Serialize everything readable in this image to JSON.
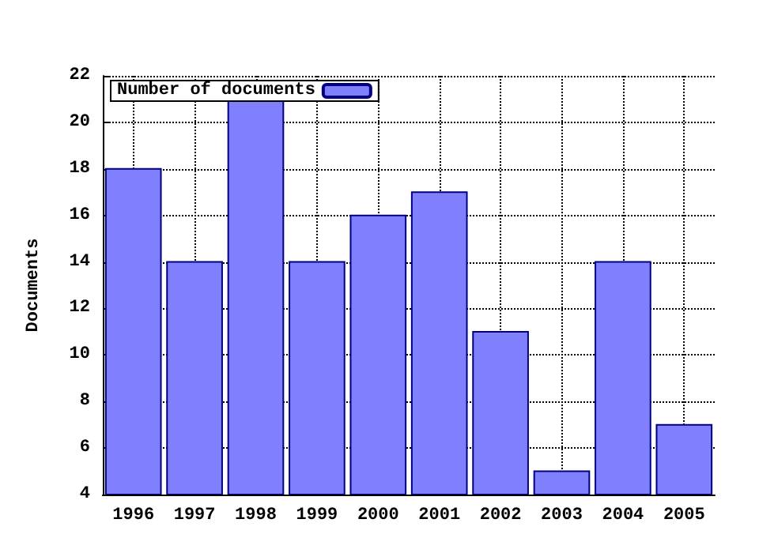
{
  "chart_data": {
    "type": "bar",
    "ylabel": "Documents",
    "x": [
      1996,
      1997,
      1998,
      1999,
      2000,
      2001,
      2002,
      2003,
      2004,
      2005
    ],
    "series": [
      {
        "name": "Number of documents",
        "color": "#8080ff",
        "values": [
          18,
          14,
          21,
          14,
          16,
          17,
          11,
          5,
          14,
          7
        ]
      }
    ],
    "xlim": [
      1995.5,
      2005.5
    ],
    "xticks": [
      1996,
      1997,
      1998,
      1999,
      2000,
      2001,
      2002,
      2003,
      2004,
      2005
    ],
    "ylim": [
      4,
      22
    ],
    "yticks": [
      4,
      6,
      8,
      10,
      12,
      14,
      16,
      18,
      20,
      22
    ],
    "grid": true,
    "legend": "top left"
  }
}
